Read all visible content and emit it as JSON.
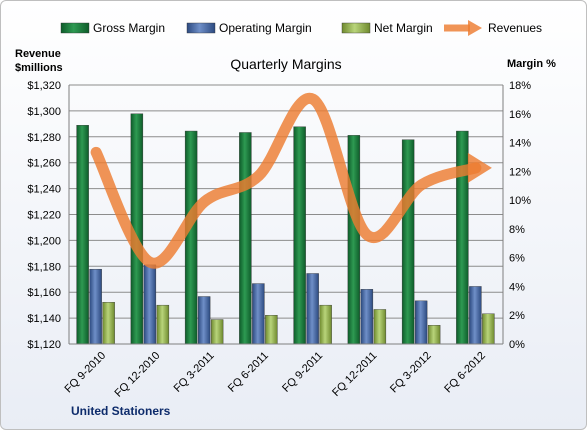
{
  "chart_data": {
    "type": "bar",
    "title": "Quarterly Margins",
    "footer": "United Stationers",
    "left_axis": {
      "label_line1": "Revenue",
      "label_line2": "$millions",
      "min": 1120,
      "max": 1320,
      "step": 20
    },
    "right_axis": {
      "label": "Margin %",
      "min": 0,
      "max": 18,
      "step": 2
    },
    "categories": [
      "FQ 9-2010",
      "FQ 12-2010",
      "FQ 3-2011",
      "FQ 6-2011",
      "FQ 9-2011",
      "FQ 12-2011",
      "FQ 3-2012",
      "FQ 6-2012"
    ],
    "legend_position": "top",
    "grid": true,
    "series": [
      {
        "name": "Gross Margin",
        "type": "bar",
        "axis": "right",
        "color": "#1f7a3c",
        "values": [
          15.2,
          16.0,
          14.8,
          14.7,
          15.1,
          14.5,
          14.2,
          14.8
        ]
      },
      {
        "name": "Operating Margin",
        "type": "bar",
        "axis": "right",
        "color": "#4f6fa8",
        "values": [
          5.2,
          5.5,
          3.3,
          4.2,
          4.9,
          3.8,
          3.0,
          4.0
        ]
      },
      {
        "name": "Net Margin",
        "type": "bar",
        "axis": "right",
        "color": "#9bbb59",
        "values": [
          2.9,
          2.7,
          1.7,
          2.0,
          2.7,
          2.4,
          1.3,
          2.1
        ]
      },
      {
        "name": "Revenues",
        "type": "line",
        "axis": "left",
        "color": "#ed7d31",
        "values": [
          1268,
          1183,
          1230,
          1250,
          1309,
          1204,
          1243,
          1256
        ]
      }
    ]
  }
}
